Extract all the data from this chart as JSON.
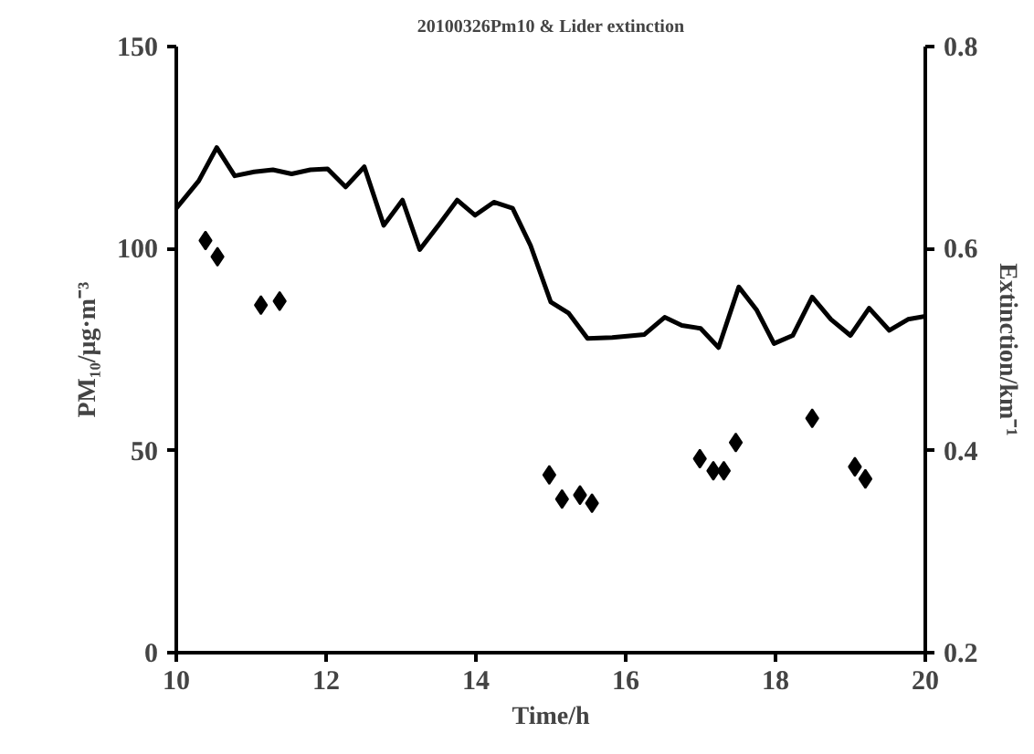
{
  "chart_data": {
    "type": "scatter",
    "title": "20100326Pm10 & Lider extinction",
    "xlabel": "Time/h",
    "ylabel": "PM₁₀/μg·m⁻³",
    "y2label": "Extinction/km⁻¹",
    "xlim": [
      10,
      20
    ],
    "xticks": [
      10,
      12,
      14,
      16,
      18,
      20
    ],
    "ylim": [
      0,
      150
    ],
    "yticks": [
      0,
      50,
      100,
      150
    ],
    "y2lim": [
      0.2,
      0.8
    ],
    "y2ticks": [
      0.2,
      0.4,
      0.6,
      0.8
    ],
    "grid": false,
    "legend": false,
    "series": [
      {
        "marker": "diamond",
        "color": "#000000",
        "x": [
          10.39,
          10.55,
          11.13,
          11.38,
          14.98,
          15.15,
          15.39,
          15.55,
          16.99,
          17.17,
          17.31,
          17.47,
          18.49,
          19.06,
          19.2
        ],
        "values": [
          102,
          98,
          86,
          87,
          44,
          38,
          39,
          37,
          48,
          45,
          45,
          52,
          58,
          46,
          43
        ]
      },
      {
        "type": "line",
        "axis": "y2",
        "marker": "none",
        "line_style": "solid",
        "color": "#000000",
        "x": [
          10.0,
          10.3,
          10.54,
          10.78,
          11.04,
          11.29,
          11.54,
          11.79,
          12.02,
          12.26,
          12.51,
          12.77,
          13.02,
          13.25,
          13.51,
          13.75,
          13.99,
          14.24,
          14.49,
          14.73,
          15.0,
          15.24,
          15.49,
          15.82,
          16.25,
          16.52,
          16.75,
          17.0,
          17.24,
          17.51,
          17.75,
          17.98,
          18.23,
          18.49,
          18.74,
          19.0,
          19.25,
          19.52,
          19.77,
          20.0
        ],
        "values": [
          0.64,
          0.667,
          0.7,
          0.672,
          0.676,
          0.678,
          0.674,
          0.678,
          0.679,
          0.661,
          0.681,
          0.623,
          0.648,
          0.599,
          0.624,
          0.648,
          0.633,
          0.646,
          0.64,
          0.603,
          0.547,
          0.536,
          0.511,
          0.512,
          0.515,
          0.532,
          0.524,
          0.521,
          0.502,
          0.562,
          0.539,
          0.506,
          0.514,
          0.552,
          0.53,
          0.514,
          0.541,
          0.519,
          0.53,
          0.533
        ]
      }
    ]
  }
}
